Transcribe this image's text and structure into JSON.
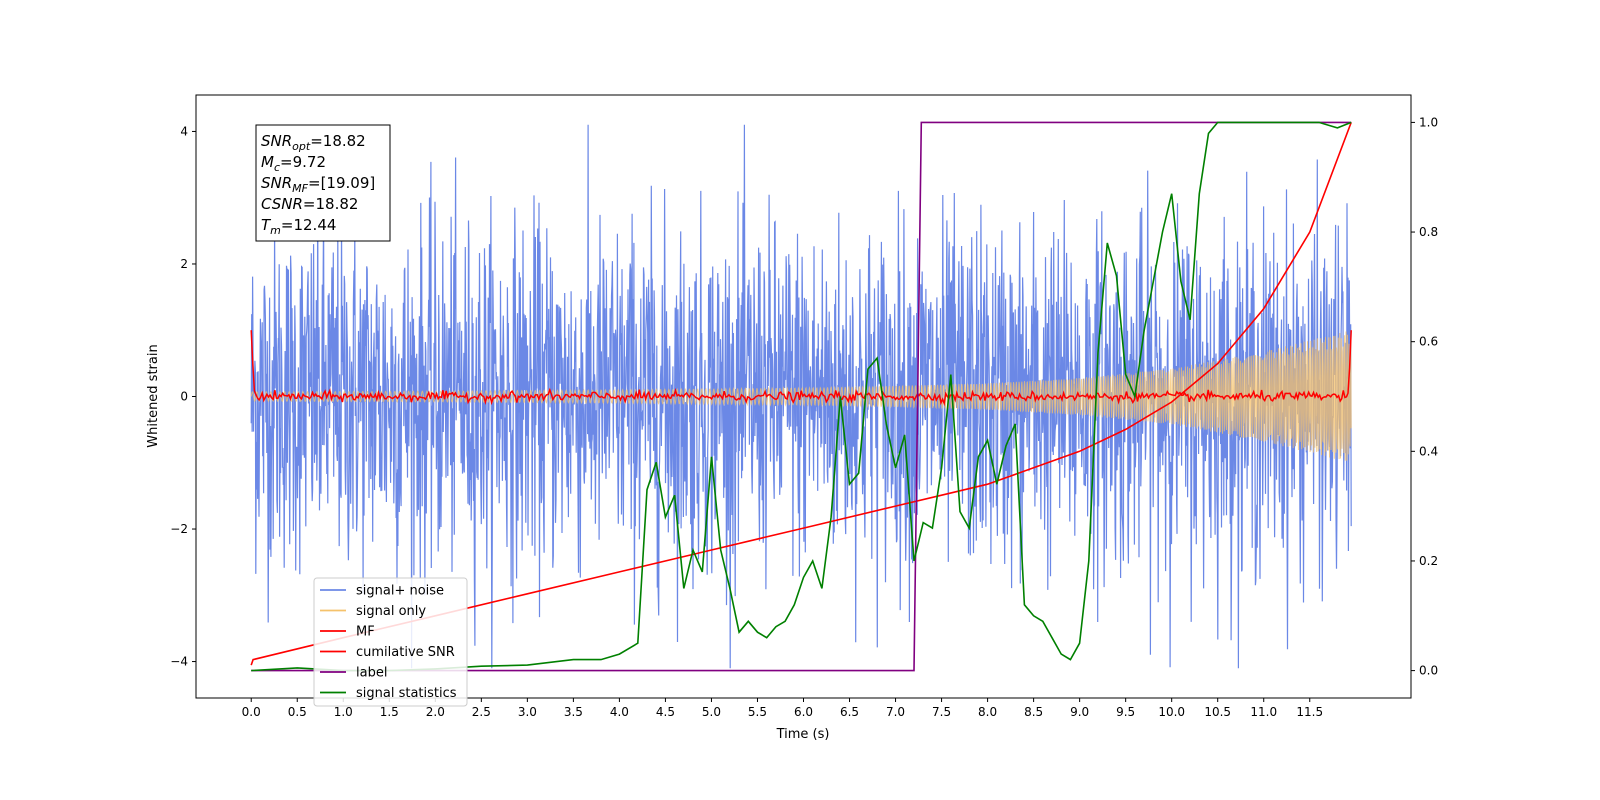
{
  "chart_data": {
    "type": "line",
    "title": "",
    "xlabel": "Time (s)",
    "ylabel": "Whitened strain",
    "y2label": "",
    "xlim": [
      -0.6,
      12.6
    ],
    "ylim": [
      -4.55,
      4.55
    ],
    "y2lim": [
      -0.05,
      1.05
    ],
    "xticks": [
      "0.0",
      "0.5",
      "1.0",
      "1.5",
      "2.0",
      "2.5",
      "3.0",
      "3.5",
      "4.0",
      "4.5",
      "5.0",
      "5.5",
      "6.0",
      "6.5",
      "7.0",
      "7.5",
      "8.0",
      "8.5",
      "9.0",
      "9.5",
      "10.0",
      "10.5",
      "11.0",
      "11.5"
    ],
    "yticks": [
      -4,
      -2,
      0,
      2,
      4
    ],
    "y2ticks": [
      "0.0",
      "0.2",
      "0.4",
      "0.6",
      "0.8",
      "1.0"
    ],
    "grid": false,
    "legend_position": "lower-left",
    "annotation": [
      {
        "main": "SNR",
        "sub": "opt",
        "value": "=18.82"
      },
      {
        "main": "M",
        "sub": "c",
        "value": "=9.72"
      },
      {
        "main": "SNR",
        "sub": "MF",
        "value": "=[19.09]"
      },
      {
        "main": "CSNR",
        "sub": "",
        "value": "=18.82"
      },
      {
        "main": "T",
        "sub": "m",
        "value": "=12.44"
      }
    ],
    "series": [
      {
        "name": "signal+ noise",
        "color": "#6b88e6",
        "axis": "left",
        "description_values": {
          "x_range": [
            0.0,
            11.95
          ],
          "typical_amplitude": 1.3,
          "peak_amplitude": 4.1
        }
      },
      {
        "name": "signal only",
        "color": "#f5c26b",
        "axis": "left",
        "envelope": {
          "x": [
            0.0,
            2.0,
            4.0,
            6.0,
            7.0,
            8.0,
            9.0,
            10.0,
            11.0,
            11.95
          ],
          "amplitude": [
            0.07,
            0.08,
            0.1,
            0.13,
            0.16,
            0.2,
            0.28,
            0.42,
            0.68,
            1.0
          ]
        }
      },
      {
        "name": "MF",
        "color": "#ff0000",
        "axis": "left",
        "x": [
          0.0,
          0.03,
          0.06,
          11.92,
          11.95
        ],
        "y": [
          1.0,
          0.1,
          0.0,
          0.0,
          1.0
        ]
      },
      {
        "name": "cumilative SNR",
        "color": "#ff0000",
        "axis": "right",
        "x": [
          0.0,
          0.02,
          1.0,
          2.0,
          3.0,
          4.0,
          5.0,
          6.0,
          7.0,
          7.5,
          8.0,
          8.5,
          9.0,
          9.5,
          10.0,
          10.5,
          11.0,
          11.5,
          11.95
        ],
        "y": [
          0.01,
          0.02,
          0.06,
          0.1,
          0.14,
          0.18,
          0.22,
          0.26,
          0.3,
          0.32,
          0.34,
          0.37,
          0.4,
          0.44,
          0.49,
          0.56,
          0.66,
          0.8,
          1.0
        ]
      },
      {
        "name": "label",
        "color": "#800080",
        "axis": "right",
        "x": [
          0.0,
          7.2,
          7.28,
          11.95
        ],
        "y": [
          0.0,
          0.0,
          1.0,
          1.0
        ]
      },
      {
        "name": "signal statistics",
        "color": "#008000",
        "axis": "right",
        "x": [
          0.0,
          0.5,
          1.0,
          1.5,
          2.0,
          2.5,
          3.0,
          3.5,
          3.8,
          4.0,
          4.2,
          4.3,
          4.4,
          4.5,
          4.6,
          4.7,
          4.8,
          4.9,
          5.0,
          5.1,
          5.2,
          5.3,
          5.4,
          5.5,
          5.6,
          5.7,
          5.8,
          5.9,
          6.0,
          6.1,
          6.2,
          6.3,
          6.4,
          6.5,
          6.6,
          6.7,
          6.8,
          6.9,
          7.0,
          7.1,
          7.2,
          7.3,
          7.4,
          7.5,
          7.6,
          7.7,
          7.8,
          7.9,
          8.0,
          8.1,
          8.2,
          8.3,
          8.4,
          8.5,
          8.6,
          8.7,
          8.8,
          8.9,
          9.0,
          9.1,
          9.2,
          9.3,
          9.4,
          9.5,
          9.6,
          9.7,
          9.8,
          9.9,
          10.0,
          10.1,
          10.2,
          10.3,
          10.4,
          10.5,
          10.7,
          11.0,
          11.3,
          11.6,
          11.8,
          11.95
        ],
        "y": [
          0.0,
          0.005,
          0.0,
          0.0,
          0.003,
          0.008,
          0.01,
          0.02,
          0.02,
          0.03,
          0.05,
          0.33,
          0.38,
          0.28,
          0.32,
          0.15,
          0.22,
          0.18,
          0.39,
          0.22,
          0.15,
          0.07,
          0.09,
          0.07,
          0.06,
          0.08,
          0.09,
          0.12,
          0.17,
          0.2,
          0.15,
          0.28,
          0.5,
          0.34,
          0.36,
          0.55,
          0.57,
          0.45,
          0.37,
          0.43,
          0.2,
          0.27,
          0.26,
          0.37,
          0.54,
          0.29,
          0.26,
          0.39,
          0.42,
          0.34,
          0.41,
          0.45,
          0.12,
          0.1,
          0.09,
          0.06,
          0.03,
          0.02,
          0.05,
          0.2,
          0.58,
          0.78,
          0.72,
          0.54,
          0.5,
          0.62,
          0.71,
          0.8,
          0.87,
          0.71,
          0.64,
          0.87,
          0.98,
          1.0,
          1.0,
          1.0,
          1.0,
          1.0,
          0.99,
          1.0
        ]
      }
    ]
  }
}
